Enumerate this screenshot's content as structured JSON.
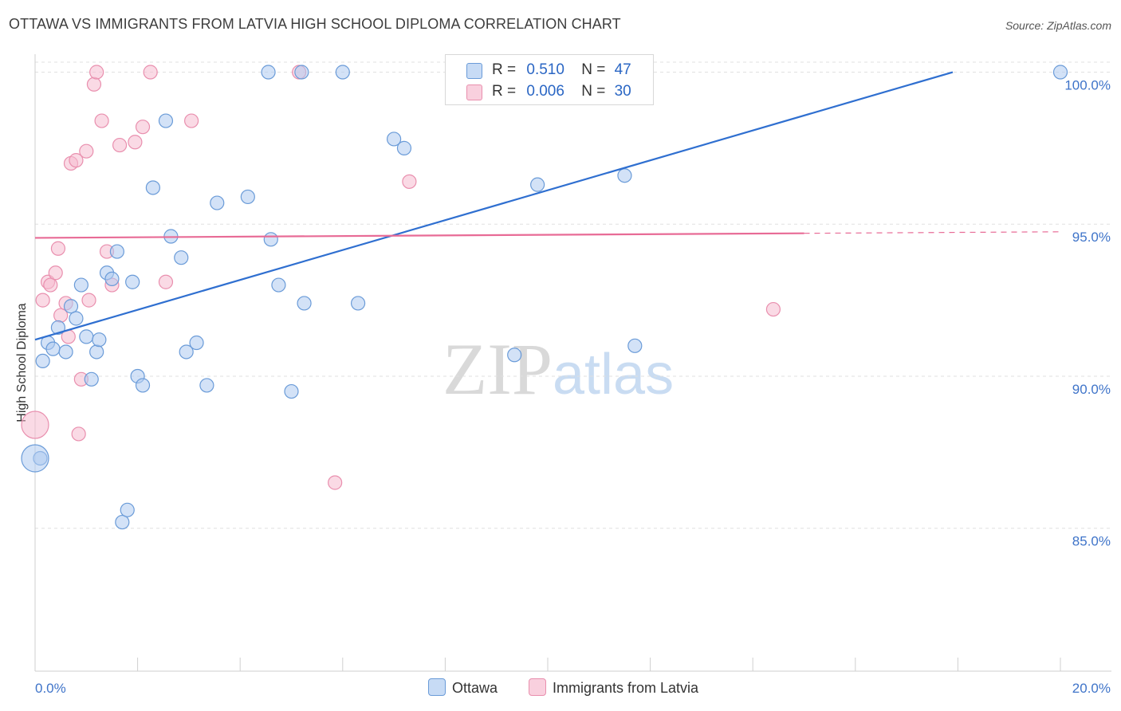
{
  "title": "OTTAWA VS IMMIGRANTS FROM LATVIA HIGH SCHOOL DIPLOMA CORRELATION CHART",
  "source": "Source: ZipAtlas.com",
  "watermark": {
    "zip": "ZIP",
    "atlas": "atlas"
  },
  "colors": {
    "ottawa_fill": "#aecbf0",
    "ottawa_stroke": "#6a9bd8",
    "ottawa_line": "#2f6fd0",
    "latvia_fill": "#f6bcd0",
    "latvia_stroke": "#e98fae",
    "latvia_line": "#e86b96",
    "tick_label": "#3f74c9",
    "grid": "#e0e0e0"
  },
  "legend": {
    "rows": [
      {
        "r_label": "R =",
        "r_value": "0.510",
        "n_label": "N =",
        "n_value": "47"
      },
      {
        "r_label": "R =",
        "r_value": "0.006",
        "n_label": "N =",
        "n_value": "30"
      }
    ]
  },
  "bottom_legend": {
    "ottawa": "Ottawa",
    "latvia": "Immigrants from Latvia"
  },
  "chart_data": {
    "type": "scatter",
    "title": "OTTAWA VS IMMIGRANTS FROM LATVIA HIGH SCHOOL DIPLOMA CORRELATION CHART",
    "xlabel": "",
    "ylabel": "High School Diploma",
    "xlim": [
      0,
      20
    ],
    "ylim": [
      80.3,
      100.8
    ],
    "x_tick_labels": [
      "0.0%",
      "20.0%"
    ],
    "y_ticks": [
      85,
      90,
      95,
      100
    ],
    "y_tick_labels": [
      "85.0%",
      "90.0%",
      "95.0%",
      "100.0%"
    ],
    "grid": true,
    "series": [
      {
        "name": "Ottawa",
        "r": 0.51,
        "n": 47,
        "trend": {
          "x": [
            0,
            17.9
          ],
          "y": [
            91.2,
            100.0
          ]
        },
        "points": [
          {
            "x": 0.15,
            "y": 90.5
          },
          {
            "x": 0.25,
            "y": 91.1
          },
          {
            "x": 0.35,
            "y": 90.9
          },
          {
            "x": 0.45,
            "y": 91.6
          },
          {
            "x": 0.6,
            "y": 90.8
          },
          {
            "x": 0.7,
            "y": 92.3
          },
          {
            "x": 0.8,
            "y": 91.9
          },
          {
            "x": 0.9,
            "y": 93.0
          },
          {
            "x": 1.0,
            "y": 91.3
          },
          {
            "x": 1.1,
            "y": 89.9
          },
          {
            "x": 1.2,
            "y": 90.8
          },
          {
            "x": 1.25,
            "y": 91.2
          },
          {
            "x": 1.4,
            "y": 93.4
          },
          {
            "x": 1.5,
            "y": 93.2
          },
          {
            "x": 1.6,
            "y": 94.1
          },
          {
            "x": 1.7,
            "y": 85.2
          },
          {
            "x": 1.8,
            "y": 85.6
          },
          {
            "x": 1.9,
            "y": 93.1
          },
          {
            "x": 2.0,
            "y": 90.0
          },
          {
            "x": 2.1,
            "y": 89.7
          },
          {
            "x": 2.3,
            "y": 96.2
          },
          {
            "x": 2.55,
            "y": 98.4
          },
          {
            "x": 2.65,
            "y": 94.6
          },
          {
            "x": 2.85,
            "y": 93.9
          },
          {
            "x": 2.95,
            "y": 90.8
          },
          {
            "x": 3.15,
            "y": 91.1
          },
          {
            "x": 3.35,
            "y": 89.7
          },
          {
            "x": 3.55,
            "y": 95.7
          },
          {
            "x": 4.15,
            "y": 95.9
          },
          {
            "x": 4.55,
            "y": 100.0
          },
          {
            "x": 4.6,
            "y": 94.5
          },
          {
            "x": 4.75,
            "y": 93.0
          },
          {
            "x": 5.0,
            "y": 89.5
          },
          {
            "x": 5.2,
            "y": 100.0
          },
          {
            "x": 5.25,
            "y": 92.4
          },
          {
            "x": 6.0,
            "y": 100.0
          },
          {
            "x": 6.3,
            "y": 92.4
          },
          {
            "x": 7.0,
            "y": 97.8
          },
          {
            "x": 7.2,
            "y": 97.5
          },
          {
            "x": 8.3,
            "y": 100.0
          },
          {
            "x": 9.35,
            "y": 90.7
          },
          {
            "x": 9.8,
            "y": 96.3
          },
          {
            "x": 11.5,
            "y": 96.6
          },
          {
            "x": 11.7,
            "y": 91.0
          },
          {
            "x": 20.0,
            "y": 100.0
          },
          {
            "x": 0.1,
            "y": 87.3
          }
        ],
        "big_points": [
          {
            "x": 0.0,
            "y": 87.3
          }
        ]
      },
      {
        "name": "Immigrants from Latvia",
        "r": 0.006,
        "n": 30,
        "trend": {
          "x": [
            0,
            15.0
          ],
          "y": [
            94.55,
            94.7
          ]
        },
        "trend_dashed": {
          "x": [
            15.0,
            20.0
          ],
          "y": [
            94.7,
            94.75
          ]
        },
        "points": [
          {
            "x": 0.15,
            "y": 92.5
          },
          {
            "x": 0.25,
            "y": 93.1
          },
          {
            "x": 0.3,
            "y": 93.0
          },
          {
            "x": 0.4,
            "y": 93.4
          },
          {
            "x": 0.45,
            "y": 94.2
          },
          {
            "x": 0.5,
            "y": 92.0
          },
          {
            "x": 0.6,
            "y": 92.4
          },
          {
            "x": 0.65,
            "y": 91.3
          },
          {
            "x": 0.7,
            "y": 97.0
          },
          {
            "x": 0.8,
            "y": 97.1
          },
          {
            "x": 0.85,
            "y": 88.1
          },
          {
            "x": 0.9,
            "y": 89.9
          },
          {
            "x": 1.0,
            "y": 97.4
          },
          {
            "x": 1.05,
            "y": 92.5
          },
          {
            "x": 1.15,
            "y": 99.6
          },
          {
            "x": 1.2,
            "y": 100.0
          },
          {
            "x": 1.3,
            "y": 98.4
          },
          {
            "x": 1.4,
            "y": 94.1
          },
          {
            "x": 1.5,
            "y": 93.0
          },
          {
            "x": 1.65,
            "y": 97.6
          },
          {
            "x": 1.95,
            "y": 97.7
          },
          {
            "x": 2.1,
            "y": 98.2
          },
          {
            "x": 2.25,
            "y": 100.0
          },
          {
            "x": 2.55,
            "y": 93.1
          },
          {
            "x": 3.05,
            "y": 98.4
          },
          {
            "x": 5.15,
            "y": 100.0
          },
          {
            "x": 5.85,
            "y": 86.5
          },
          {
            "x": 7.3,
            "y": 96.4
          },
          {
            "x": 14.4,
            "y": 92.2
          }
        ],
        "big_points": [
          {
            "x": 0.0,
            "y": 88.4
          }
        ]
      }
    ]
  }
}
